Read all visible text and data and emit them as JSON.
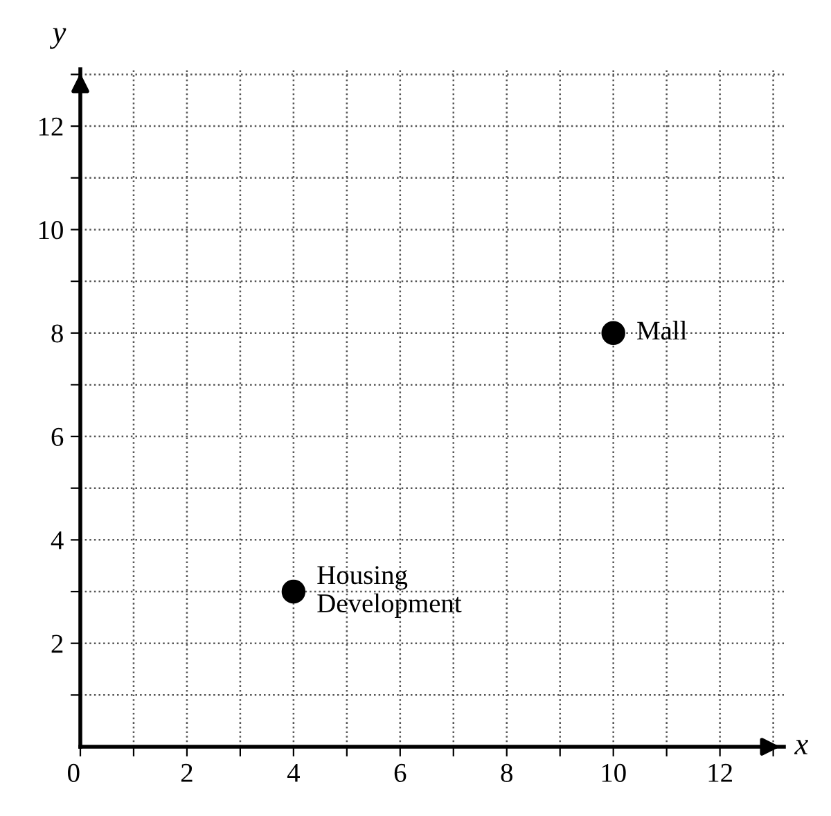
{
  "chart_data": {
    "type": "scatter",
    "xlabel": "x",
    "ylabel": "y",
    "x": [
      4,
      10
    ],
    "series": [
      {
        "color": "#000000",
        "values": [
          3,
          8
        ]
      }
    ],
    "marker": "circle",
    "xlim": [
      0,
      13.2
    ],
    "ylim": [
      0,
      13.1
    ],
    "xticks": [
      {
        "value": 0,
        "label": "0"
      },
      {
        "value": 1,
        "label": null
      },
      2,
      {
        "value": 3,
        "label": null
      },
      4,
      {
        "value": 5,
        "label": null
      },
      6,
      {
        "value": 7,
        "label": null
      },
      8,
      {
        "value": 9,
        "label": null
      },
      10,
      {
        "value": 11,
        "label": null
      },
      12,
      {
        "value": 13,
        "label": null
      }
    ],
    "yticks": [
      {
        "value": 1,
        "label": null
      },
      2,
      {
        "value": 3,
        "label": null
      },
      4,
      {
        "value": 5,
        "label": null
      },
      6,
      {
        "value": 7,
        "label": null
      },
      8,
      {
        "value": 9,
        "label": null
      },
      10,
      {
        "value": 11,
        "label": null
      },
      12,
      {
        "value": 13,
        "label": null
      }
    ],
    "grid": true,
    "annotations": [
      {
        "text": "Housing\nDevelopment",
        "x": 4,
        "y": 3
      },
      {
        "text": "Mall",
        "x": 10,
        "y": 8
      }
    ]
  }
}
